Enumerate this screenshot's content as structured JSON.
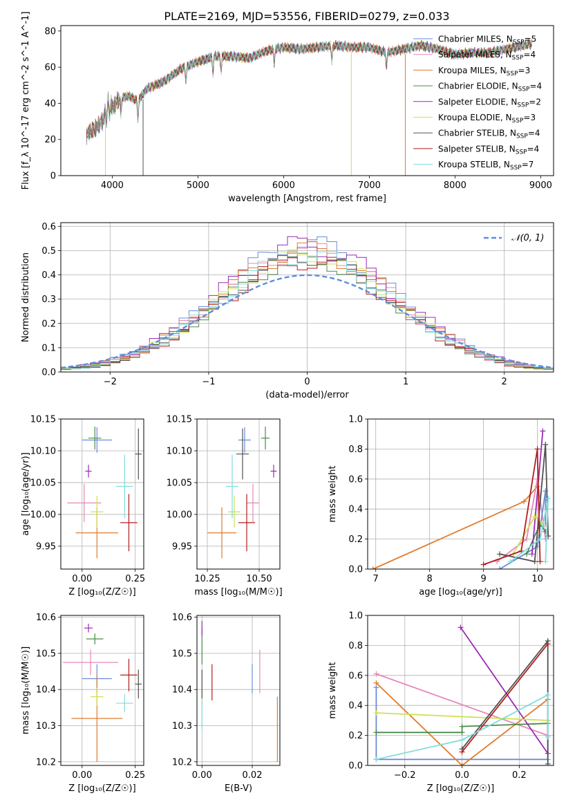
{
  "figure": {
    "title": "PLATE=2169, MJD=53556, FIBERID=0279, z=0.033"
  },
  "colors": {
    "chabrier_miles": "#6a8ad8",
    "salpeter_miles": "#e687b8",
    "kroupa_miles": "#e07b2c",
    "chabrier_elodie": "#4a8a4a",
    "salpeter_elodie": "#9a2ab4",
    "kroupa_elodie": "#cfe050",
    "chabrier_stelib": "#505050",
    "salpeter_stelib": "#b01c1c",
    "kroupa_stelib": "#80dcdc"
  },
  "chart_data": [
    {
      "id": "spectrum",
      "type": "line",
      "title": "PLATE=2169, MJD=53556, FIBERID=0279, z=0.033",
      "xlabel": "wavelength [Angstrom, rest frame]",
      "ylabel": "Flux [f_λ 10^-17 erg cm^-2 s^-1 A^-1]",
      "xlim": [
        3400,
        9150
      ],
      "ylim": [
        0,
        83
      ],
      "xticks": [
        4000,
        5000,
        6000,
        7000,
        8000,
        9000
      ],
      "yticks": [
        0,
        20,
        40,
        60,
        80
      ],
      "grid": false,
      "legend_position": "right",
      "legend": [
        {
          "model": "Chabrier MILES",
          "nssp": "5",
          "color_key": "chabrier_miles"
        },
        {
          "model": "Salpeter MILES",
          "nssp": "4",
          "color_key": "salpeter_miles"
        },
        {
          "model": "Kroupa MILES",
          "nssp": "3",
          "color_key": "kroupa_miles"
        },
        {
          "model": "Chabrier ELODIE",
          "nssp": "4",
          "color_key": "chabrier_elodie"
        },
        {
          "model": "Salpeter ELODIE",
          "nssp": "2",
          "color_key": "salpeter_elodie"
        },
        {
          "model": "Kroupa ELODIE",
          "nssp": "3",
          "color_key": "kroupa_elodie"
        },
        {
          "model": "Chabrier STELIB",
          "nssp": "4",
          "color_key": "chabrier_stelib"
        },
        {
          "model": "Salpeter STELIB",
          "nssp": "4",
          "color_key": "salpeter_stelib"
        },
        {
          "model": "Kroupa STELIB",
          "nssp": "7",
          "color_key": "kroupa_stelib"
        }
      ],
      "continuum": {
        "x": [
          3700,
          3800,
          3900,
          3950,
          4000,
          4100,
          4200,
          4300,
          4400,
          4500,
          4600,
          4800,
          5000,
          5200,
          5400,
          5600,
          5800,
          6000,
          6200,
          6400,
          6600,
          6800,
          7000,
          7200,
          7400,
          7600,
          7800,
          8000,
          8200,
          8400,
          8600,
          8800,
          8900
        ],
        "y": [
          23,
          26,
          31,
          42,
          38,
          43,
          44,
          41,
          48,
          50,
          52,
          59,
          63,
          66,
          66,
          65,
          69,
          71,
          70,
          71,
          72,
          71,
          71,
          68,
          70,
          72,
          70,
          67,
          68,
          68,
          70,
          72,
          73
        ]
      },
      "dropouts": [
        {
          "x": 3920,
          "color_key": "kroupa_elodie"
        },
        {
          "x": 4360,
          "color_key": "chabrier_stelib"
        },
        {
          "x": 6790,
          "color_key": "kroupa_elodie"
        },
        {
          "x": 7420,
          "color_key": "kroupa_miles"
        }
      ]
    },
    {
      "id": "residuals",
      "type": "histogram",
      "xlabel": "(data-model)/error",
      "ylabel": "Normed distribution",
      "xlim": [
        -2.5,
        2.5
      ],
      "ylim": [
        0,
        0.615
      ],
      "xticks": [
        -2,
        -1,
        0,
        1,
        2
      ],
      "yticks": [
        0.0,
        0.1,
        0.2,
        0.3,
        0.4,
        0.5,
        0.6
      ],
      "grid": true,
      "legend_position": "top-right",
      "reference_label": "𝒩(0, 1)",
      "bin_width": 0.1,
      "series": [
        {
          "color_key": "chabrier_miles",
          "peak": 0.53,
          "amp": 0.035,
          "phase": 0.0
        },
        {
          "color_key": "salpeter_miles",
          "peak": 0.5,
          "amp": 0.04,
          "phase": 0.7
        },
        {
          "color_key": "kroupa_miles",
          "peak": 0.5,
          "amp": 0.04,
          "phase": 1.4
        },
        {
          "color_key": "chabrier_elodie",
          "peak": 0.46,
          "amp": 0.03,
          "phase": 2.1
        },
        {
          "color_key": "salpeter_elodie",
          "peak": 0.52,
          "amp": 0.045,
          "phase": 2.8
        },
        {
          "color_key": "kroupa_elodie",
          "peak": 0.48,
          "amp": 0.035,
          "phase": 3.5
        },
        {
          "color_key": "chabrier_stelib",
          "peak": 0.47,
          "amp": 0.03,
          "phase": 4.2
        },
        {
          "color_key": "salpeter_stelib",
          "peak": 0.46,
          "amp": 0.04,
          "phase": 4.9
        },
        {
          "color_key": "kroupa_stelib",
          "peak": 0.48,
          "amp": 0.035,
          "phase": 5.6
        }
      ]
    },
    {
      "id": "age-vs-z",
      "type": "scatter",
      "xlabel": "Z [log₁₀(Z/Z☉)]",
      "ylabel": "age  [log₁₀(age/yr)]",
      "xlim": [
        -0.1,
        0.29
      ],
      "ylim": [
        9.914,
        10.15
      ],
      "xticks": [
        0.0,
        0.25
      ],
      "yticks": [
        9.95,
        10.0,
        10.05,
        10.1,
        10.15
      ],
      "ytick_decimals": 2,
      "grid": true,
      "points": [
        {
          "x": 0.07,
          "y": 10.117,
          "xerr": 0.07,
          "yerr": 0.02,
          "color_key": "chabrier_miles"
        },
        {
          "x": 0.01,
          "y": 10.018,
          "xerr": 0.08,
          "yerr": 0.03,
          "color_key": "salpeter_miles"
        },
        {
          "x": 0.07,
          "y": 9.971,
          "xerr": 0.1,
          "yerr": 0.04,
          "color_key": "kroupa_miles"
        },
        {
          "x": 0.06,
          "y": 10.12,
          "xerr": 0.03,
          "yerr": 0.018,
          "color_key": "chabrier_elodie"
        },
        {
          "x": 0.03,
          "y": 10.068,
          "xerr": 0.015,
          "yerr": 0.01,
          "color_key": "salpeter_elodie"
        },
        {
          "x": 0.07,
          "y": 10.004,
          "xerr": 0.03,
          "yerr": 0.025,
          "color_key": "kroupa_elodie"
        },
        {
          "x": 0.265,
          "y": 10.095,
          "xerr": 0.015,
          "yerr": 0.04,
          "color_key": "chabrier_stelib"
        },
        {
          "x": 0.22,
          "y": 9.987,
          "xerr": 0.04,
          "yerr": 0.045,
          "color_key": "salpeter_stelib"
        },
        {
          "x": 0.2,
          "y": 10.044,
          "xerr": 0.04,
          "yerr": 0.05,
          "color_key": "kroupa_stelib"
        }
      ]
    },
    {
      "id": "age-vs-mass",
      "type": "scatter",
      "xlabel": "mass [log₁₀(M/M☉)]",
      "ylabel": "",
      "xlim": [
        10.2,
        10.6
      ],
      "ylim": [
        9.914,
        10.15
      ],
      "xticks": [
        10.25,
        10.5
      ],
      "yticks": [
        9.95,
        10.0,
        10.05,
        10.1,
        10.15
      ],
      "ytick_decimals": 2,
      "grid": true,
      "points": [
        {
          "x": 10.43,
          "y": 10.117,
          "xerr": 0.03,
          "yerr": 0.02,
          "color_key": "chabrier_miles"
        },
        {
          "x": 10.47,
          "y": 10.018,
          "xerr": 0.03,
          "yerr": 0.03,
          "color_key": "salpeter_miles"
        },
        {
          "x": 10.32,
          "y": 9.971,
          "xerr": 0.07,
          "yerr": 0.04,
          "color_key": "kroupa_miles"
        },
        {
          "x": 10.53,
          "y": 10.12,
          "xerr": 0.02,
          "yerr": 0.018,
          "color_key": "chabrier_elodie"
        },
        {
          "x": 10.57,
          "y": 10.068,
          "xerr": 0.015,
          "yerr": 0.01,
          "color_key": "salpeter_elodie"
        },
        {
          "x": 10.38,
          "y": 10.004,
          "xerr": 0.03,
          "yerr": 0.025,
          "color_key": "kroupa_elodie"
        },
        {
          "x": 10.42,
          "y": 10.095,
          "xerr": 0.03,
          "yerr": 0.04,
          "color_key": "chabrier_stelib"
        },
        {
          "x": 10.44,
          "y": 9.987,
          "xerr": 0.04,
          "yerr": 0.045,
          "color_key": "salpeter_stelib"
        },
        {
          "x": 10.37,
          "y": 10.044,
          "xerr": 0.03,
          "yerr": 0.05,
          "color_key": "kroupa_stelib"
        }
      ]
    },
    {
      "id": "weight-vs-age",
      "type": "line",
      "xlabel": "age  [log₁₀(age/yr)]",
      "ylabel": "mass weight",
      "xlim": [
        6.85,
        10.3
      ],
      "ylim": [
        0,
        1.0
      ],
      "xticks": [
        7,
        8,
        9,
        10
      ],
      "yticks": [
        0.0,
        0.2,
        0.4,
        0.6,
        0.8,
        1.0
      ],
      "grid": true,
      "series": [
        {
          "color_key": "kroupa_miles",
          "points": [
            [
              6.95,
              0.0
            ],
            [
              9.75,
              0.45
            ],
            [
              10.0,
              0.55
            ]
          ]
        },
        {
          "color_key": "salpeter_miles",
          "points": [
            [
              9.25,
              0.05
            ],
            [
              9.8,
              0.2
            ],
            [
              10.0,
              0.6
            ],
            [
              10.15,
              0.2
            ]
          ]
        },
        {
          "color_key": "chabrier_miles",
          "points": [
            [
              9.3,
              0.0
            ],
            [
              10.0,
              0.15
            ],
            [
              10.15,
              0.52
            ],
            [
              10.15,
              0.3
            ]
          ]
        },
        {
          "color_key": "chabrier_elodie",
          "points": [
            [
              9.8,
              0.1
            ],
            [
              10.05,
              0.3
            ],
            [
              10.15,
              0.25
            ]
          ]
        },
        {
          "color_key": "salpeter_elodie",
          "points": [
            [
              9.9,
              0.1
            ],
            [
              10.1,
              0.92
            ]
          ]
        },
        {
          "color_key": "kroupa_elodie",
          "points": [
            [
              9.55,
              0.1
            ],
            [
              9.95,
              0.35
            ],
            [
              10.1,
              0.3
            ]
          ]
        },
        {
          "color_key": "chabrier_stelib",
          "points": [
            [
              9.3,
              0.1
            ],
            [
              9.95,
              0.05
            ],
            [
              10.15,
              0.83
            ],
            [
              10.2,
              0.22
            ]
          ]
        },
        {
          "color_key": "salpeter_stelib",
          "points": [
            [
              9.0,
              0.03
            ],
            [
              9.7,
              0.12
            ],
            [
              10.0,
              0.8
            ],
            [
              10.05,
              0.05
            ]
          ]
        },
        {
          "color_key": "kroupa_stelib",
          "points": [
            [
              9.5,
              0.05
            ],
            [
              10.05,
              0.2
            ],
            [
              10.2,
              0.47
            ],
            [
              10.15,
              0.05
            ]
          ]
        }
      ]
    },
    {
      "id": "mass-vs-z",
      "type": "scatter",
      "xlabel": "Z [log₁₀(Z/Z☉)]",
      "ylabel": "mass [log₁₀(M/M☉)]",
      "xlim": [
        -0.1,
        0.29
      ],
      "ylim": [
        10.19,
        10.605
      ],
      "xticks": [
        0.0,
        0.25
      ],
      "yticks": [
        10.2,
        10.3,
        10.4,
        10.5,
        10.6
      ],
      "ytick_decimals": 1,
      "grid": true,
      "points": [
        {
          "x": 0.07,
          "y": 10.43,
          "xerr": 0.07,
          "yerr": 0.04,
          "color_key": "chabrier_miles"
        },
        {
          "x": 0.04,
          "y": 10.475,
          "xerr": 0.13,
          "yerr": 0.035,
          "color_key": "salpeter_miles"
        },
        {
          "x": 0.07,
          "y": 10.32,
          "xerr": 0.12,
          "yerr": 0.12,
          "color_key": "kroupa_miles"
        },
        {
          "x": 0.06,
          "y": 10.54,
          "xerr": 0.04,
          "yerr": 0.015,
          "color_key": "chabrier_elodie"
        },
        {
          "x": 0.03,
          "y": 10.57,
          "xerr": 0.02,
          "yerr": 0.012,
          "color_key": "salpeter_elodie"
        },
        {
          "x": 0.07,
          "y": 10.38,
          "xerr": 0.03,
          "yerr": 0.025,
          "color_key": "kroupa_elodie"
        },
        {
          "x": 0.265,
          "y": 10.415,
          "xerr": 0.015,
          "yerr": 0.04,
          "color_key": "chabrier_stelib"
        },
        {
          "x": 0.22,
          "y": 10.44,
          "xerr": 0.04,
          "yerr": 0.045,
          "color_key": "salpeter_stelib"
        },
        {
          "x": 0.2,
          "y": 10.362,
          "xerr": 0.04,
          "yerr": 0.025,
          "color_key": "kroupa_stelib"
        }
      ]
    },
    {
      "id": "mass-vs-ebv",
      "type": "scatter",
      "xlabel": "E(B-V)",
      "ylabel": "",
      "xlim": [
        -0.002,
        0.031
      ],
      "ylim": [
        10.19,
        10.605
      ],
      "xticks": [
        0.0,
        0.02
      ],
      "yticks": [
        10.2,
        10.3,
        10.4,
        10.5,
        10.6
      ],
      "ytick_decimals": 1,
      "grid": true,
      "points": [
        {
          "x": 0.02,
          "y": 10.43,
          "xerr": 0.0,
          "yerr": 0.04,
          "color_key": "chabrier_miles"
        },
        {
          "x": 0.023,
          "y": 10.45,
          "xerr": 0.0,
          "yerr": 0.06,
          "color_key": "salpeter_miles"
        },
        {
          "x": 0.03,
          "y": 10.29,
          "xerr": 0.0,
          "yerr": 0.09,
          "color_key": "kroupa_miles"
        },
        {
          "x": 0.0,
          "y": 10.52,
          "xerr": 0.0,
          "yerr": 0.05,
          "color_key": "chabrier_elodie"
        },
        {
          "x": 0.0,
          "y": 10.57,
          "xerr": 0.0,
          "yerr": 0.02,
          "color_key": "salpeter_elodie"
        },
        {
          "x": 0.0,
          "y": 10.38,
          "xerr": 0.0,
          "yerr": 0.025,
          "color_key": "kroupa_elodie"
        },
        {
          "x": 0.0,
          "y": 10.415,
          "xerr": 0.0,
          "yerr": 0.04,
          "color_key": "chabrier_stelib"
        },
        {
          "x": 0.004,
          "y": 10.42,
          "xerr": 0.0,
          "yerr": 0.05,
          "color_key": "salpeter_stelib"
        },
        {
          "x": 0.0,
          "y": 10.33,
          "xerr": 0.0,
          "yerr": 0.04,
          "color_key": "kroupa_stelib"
        }
      ]
    },
    {
      "id": "weight-vs-z",
      "type": "line",
      "xlabel": "Z [log₁₀(Z/Z☉)]",
      "ylabel": "mass weight",
      "xlim": [
        -0.33,
        0.32
      ],
      "ylim": [
        0,
        1.0
      ],
      "xticks": [
        -0.2,
        0.0,
        0.2
      ],
      "yticks": [
        0.0,
        0.2,
        0.4,
        0.6,
        0.8,
        1.0
      ],
      "grid": true,
      "series": [
        {
          "color_key": "chabrier_miles",
          "points": [
            [
              -0.3,
              0.52
            ],
            [
              -0.3,
              0.04
            ],
            [
              0.3,
              0.04
            ],
            [
              0.3,
              0.3
            ]
          ]
        },
        {
          "color_key": "salpeter_miles",
          "points": [
            [
              -0.3,
              0.61
            ],
            [
              0.3,
              0.2
            ]
          ]
        },
        {
          "color_key": "kroupa_miles",
          "points": [
            [
              -0.3,
              0.55
            ],
            [
              0.0,
              0.0
            ],
            [
              0.3,
              0.44
            ]
          ]
        },
        {
          "color_key": "chabrier_elodie",
          "points": [
            [
              -0.3,
              0.22
            ],
            [
              0.0,
              0.22
            ],
            [
              0.0,
              0.26
            ],
            [
              0.3,
              0.28
            ]
          ]
        },
        {
          "color_key": "salpeter_elodie",
          "points": [
            [
              -0.005,
              0.92
            ],
            [
              0.3,
              0.08
            ]
          ]
        },
        {
          "color_key": "kroupa_elodie",
          "points": [
            [
              -0.3,
              0.35
            ],
            [
              0.3,
              0.3
            ]
          ]
        },
        {
          "color_key": "chabrier_stelib",
          "points": [
            [
              0.0,
              0.11
            ],
            [
              0.3,
              0.83
            ],
            [
              0.3,
              0.01
            ]
          ]
        },
        {
          "color_key": "salpeter_stelib",
          "points": [
            [
              0.0,
              0.09
            ],
            [
              0.3,
              0.81
            ]
          ]
        },
        {
          "color_key": "kroupa_stelib",
          "points": [
            [
              -0.3,
              0.04
            ],
            [
              0.0,
              0.17
            ],
            [
              0.3,
              0.47
            ],
            [
              0.3,
              0.19
            ]
          ]
        }
      ]
    }
  ]
}
